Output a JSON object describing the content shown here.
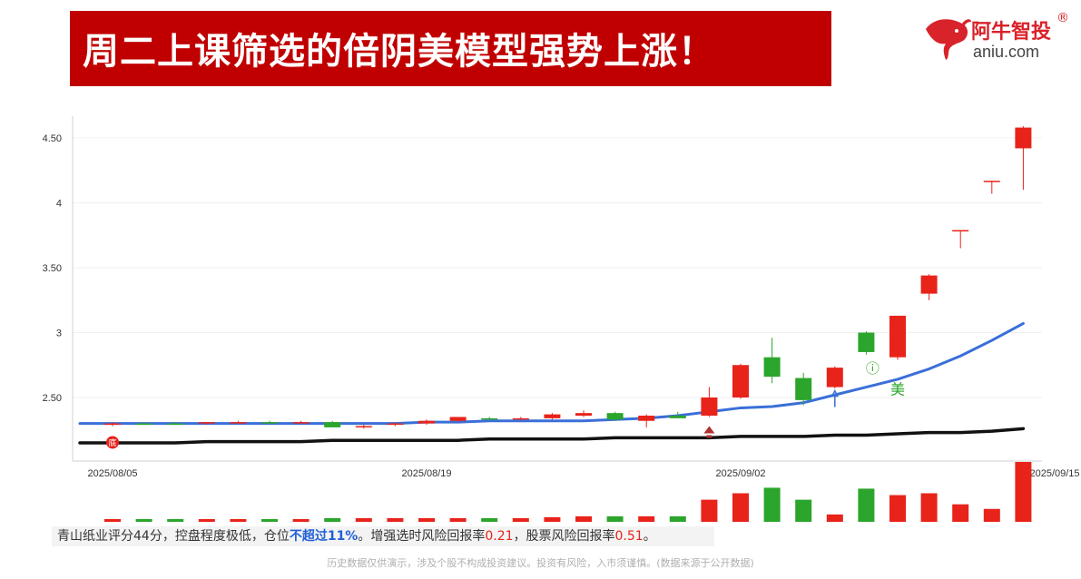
{
  "header": {
    "title": "周二上课筛选的倍阴美模型强势上涨！",
    "logo_cn": "阿牛智投",
    "logo_reg": "®",
    "logo_en": "aniu.com"
  },
  "chart_data": {
    "type": "candlestick",
    "ylim": [
      2.05,
      4.62
    ],
    "yticks": [
      {
        "value": 4.5,
        "label": "4.50"
      },
      {
        "value": 4.0,
        "label": "4"
      },
      {
        "value": 3.5,
        "label": "3.50"
      },
      {
        "value": 3.0,
        "label": "3"
      },
      {
        "value": 2.5,
        "label": "2.50"
      }
    ],
    "xtick_labels": [
      {
        "index": 0,
        "label": "2025/08/05"
      },
      {
        "index": 10,
        "label": "2025/08/19"
      },
      {
        "index": 20,
        "label": "2025/09/02"
      },
      {
        "index": 30,
        "label": "2025/09/15"
      }
    ],
    "candles": [
      {
        "o": 2.3,
        "h": 2.31,
        "l": 2.28,
        "c": 2.29,
        "dir": "up"
      },
      {
        "o": 2.3,
        "h": 2.31,
        "l": 2.29,
        "c": 2.3,
        "dir": "down"
      },
      {
        "o": 2.3,
        "h": 2.31,
        "l": 2.29,
        "c": 2.3,
        "dir": "down"
      },
      {
        "o": 2.3,
        "h": 2.31,
        "l": 2.29,
        "c": 2.31,
        "dir": "up"
      },
      {
        "o": 2.3,
        "h": 2.32,
        "l": 2.3,
        "c": 2.31,
        "dir": "up"
      },
      {
        "o": 2.31,
        "h": 2.32,
        "l": 2.3,
        "c": 2.31,
        "dir": "down"
      },
      {
        "o": 2.31,
        "h": 2.32,
        "l": 2.3,
        "c": 2.31,
        "dir": "up"
      },
      {
        "o": 2.31,
        "h": 2.32,
        "l": 2.27,
        "c": 2.27,
        "dir": "down"
      },
      {
        "o": 2.27,
        "h": 2.29,
        "l": 2.26,
        "c": 2.28,
        "dir": "up"
      },
      {
        "o": 2.29,
        "h": 2.31,
        "l": 2.28,
        "c": 2.3,
        "dir": "up"
      },
      {
        "o": 2.3,
        "h": 2.33,
        "l": 2.29,
        "c": 2.32,
        "dir": "up"
      },
      {
        "o": 2.32,
        "h": 2.35,
        "l": 2.31,
        "c": 2.35,
        "dir": "up"
      },
      {
        "o": 2.34,
        "h": 2.35,
        "l": 2.33,
        "c": 2.34,
        "dir": "down"
      },
      {
        "o": 2.34,
        "h": 2.35,
        "l": 2.33,
        "c": 2.34,
        "dir": "up"
      },
      {
        "o": 2.34,
        "h": 2.38,
        "l": 2.33,
        "c": 2.37,
        "dir": "up"
      },
      {
        "o": 2.36,
        "h": 2.4,
        "l": 2.35,
        "c": 2.38,
        "dir": "up"
      },
      {
        "o": 2.38,
        "h": 2.39,
        "l": 2.32,
        "c": 2.33,
        "dir": "down"
      },
      {
        "o": 2.32,
        "h": 2.37,
        "l": 2.27,
        "c": 2.36,
        "dir": "up"
      },
      {
        "o": 2.34,
        "h": 2.39,
        "l": 2.34,
        "c": 2.36,
        "dir": "down"
      },
      {
        "o": 2.36,
        "h": 2.58,
        "l": 2.35,
        "c": 2.5,
        "dir": "up"
      },
      {
        "o": 2.5,
        "h": 2.76,
        "l": 2.49,
        "c": 2.75,
        "dir": "up"
      },
      {
        "o": 2.81,
        "h": 2.96,
        "l": 2.61,
        "c": 2.66,
        "dir": "down"
      },
      {
        "o": 2.65,
        "h": 2.69,
        "l": 2.44,
        "c": 2.48,
        "dir": "down"
      },
      {
        "o": 2.58,
        "h": 2.74,
        "l": 2.57,
        "c": 2.73,
        "dir": "up"
      },
      {
        "o": 3.0,
        "h": 3.01,
        "l": 2.83,
        "c": 2.85,
        "dir": "down"
      },
      {
        "o": 2.81,
        "h": 3.13,
        "l": 2.79,
        "c": 3.13,
        "dir": "up"
      },
      {
        "o": 3.3,
        "h": 3.45,
        "l": 3.25,
        "c": 3.44,
        "dir": "up"
      },
      {
        "o": 3.79,
        "h": 3.79,
        "l": 3.65,
        "c": 3.79,
        "dir": "up"
      },
      {
        "o": 4.17,
        "h": 4.17,
        "l": 4.07,
        "c": 4.17,
        "dir": "up"
      },
      {
        "o": 4.42,
        "h": 4.59,
        "l": 4.1,
        "c": 4.58,
        "dir": "up"
      }
    ],
    "series": [
      {
        "values": [
          2.3,
          2.3,
          2.3,
          2.3,
          2.3,
          2.3,
          2.3,
          2.3,
          2.3,
          2.3,
          2.31,
          2.31,
          2.32,
          2.32,
          2.32,
          2.32,
          2.33,
          2.34,
          2.36,
          2.39,
          2.42,
          2.43,
          2.46,
          2.52,
          2.58,
          2.64,
          2.72,
          2.82,
          2.94,
          3.07
        ],
        "color": "#3a6fd8"
      },
      {
        "values": [
          2.15,
          2.15,
          2.15,
          2.16,
          2.16,
          2.16,
          2.16,
          2.17,
          2.17,
          2.17,
          2.17,
          2.17,
          2.18,
          2.18,
          2.18,
          2.18,
          2.19,
          2.19,
          2.19,
          2.19,
          2.2,
          2.2,
          2.2,
          2.21,
          2.21,
          2.22,
          2.23,
          2.23,
          2.24,
          2.26
        ],
        "color": "#111111"
      }
    ],
    "volume": [
      {
        "v": 3,
        "dir": "up"
      },
      {
        "v": 3,
        "dir": "down"
      },
      {
        "v": 3,
        "dir": "down"
      },
      {
        "v": 3,
        "dir": "up"
      },
      {
        "v": 3,
        "dir": "up"
      },
      {
        "v": 3,
        "dir": "down"
      },
      {
        "v": 3,
        "dir": "up"
      },
      {
        "v": 4,
        "dir": "down"
      },
      {
        "v": 4,
        "dir": "up"
      },
      {
        "v": 4,
        "dir": "up"
      },
      {
        "v": 4,
        "dir": "up"
      },
      {
        "v": 4,
        "dir": "up"
      },
      {
        "v": 4,
        "dir": "down"
      },
      {
        "v": 4,
        "dir": "up"
      },
      {
        "v": 5,
        "dir": "up"
      },
      {
        "v": 6,
        "dir": "up"
      },
      {
        "v": 6,
        "dir": "down"
      },
      {
        "v": 6,
        "dir": "up"
      },
      {
        "v": 6,
        "dir": "down"
      },
      {
        "v": 24,
        "dir": "up"
      },
      {
        "v": 31,
        "dir": "up"
      },
      {
        "v": 37,
        "dir": "down"
      },
      {
        "v": 24,
        "dir": "down"
      },
      {
        "v": 8,
        "dir": "up"
      },
      {
        "v": 36,
        "dir": "down"
      },
      {
        "v": 29,
        "dir": "up"
      },
      {
        "v": 31,
        "dir": "up"
      },
      {
        "v": 19,
        "dir": "up"
      },
      {
        "v": 14,
        "dir": "up"
      },
      {
        "v": 65,
        "dir": "up"
      }
    ],
    "volume_max": 65,
    "markers": [
      {
        "index": 0,
        "type": "circle-label",
        "text": "底"
      },
      {
        "index": 19,
        "type": "arrow-up"
      },
      {
        "index": 24,
        "type": "circle-label",
        "text": "ⓘ"
      },
      {
        "index": 25,
        "type": "text",
        "text": "美"
      },
      {
        "index": 23,
        "type": "stick"
      }
    ],
    "colors": {
      "up": "#e8231a",
      "down": "#2ba52b",
      "ma_fast": "#3a6fd8",
      "ma_slow": "#111111",
      "grid": "#f0f0f0",
      "axis_text": "#333333"
    }
  },
  "caption": {
    "part1": "青山纸业评分44分，控盘程度极低，仓位",
    "highlight": "不超过11%",
    "part2": "。增强选时风险回报率",
    "r1": "0.21",
    "part3": "，股票风险回报率",
    "r2": "0.51",
    "part4": "。"
  },
  "disclaimer": "历史数据仅供演示，涉及个股不构成投资建议。投资有风险，入市须谨慎。(数据来源于公开数据)"
}
